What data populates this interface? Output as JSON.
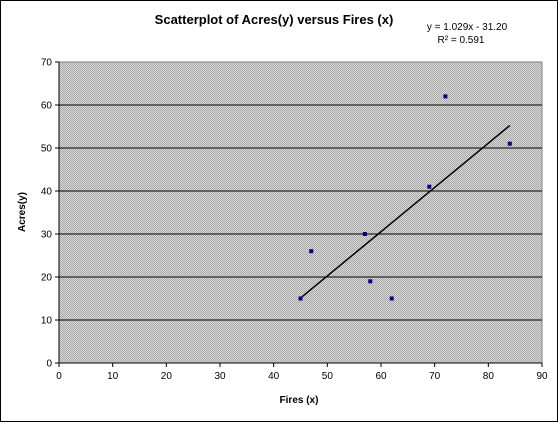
{
  "chart_data": {
    "type": "scatter",
    "title": "Scatterplot of Acres(y) versus Fires (x)",
    "xlabel": "Fires (x)",
    "ylabel": "Acres(y)",
    "xlim": [
      0,
      90
    ],
    "ylim": [
      0,
      70
    ],
    "x_ticks": [
      "0",
      "10",
      "20",
      "30",
      "40",
      "50",
      "60",
      "70",
      "80",
      "90"
    ],
    "y_ticks": [
      "0",
      "10",
      "20",
      "30",
      "40",
      "50",
      "60",
      "70"
    ],
    "grid": "horizontal",
    "plot_background": "#c0c0c0",
    "point_color": "#000080",
    "trendline_color": "#000000",
    "series": [
      {
        "x": [
          45,
          47,
          57,
          58,
          62,
          69,
          72,
          84
        ],
        "y": [
          15,
          26,
          30,
          19,
          15,
          41,
          62,
          51
        ]
      }
    ],
    "trendline": {
      "slope": 1.029,
      "intercept": -31.2,
      "x_range": [
        45,
        84
      ],
      "equation": "y = 1.029x - 31.20",
      "r_squared": "R² = 0.591"
    }
  }
}
